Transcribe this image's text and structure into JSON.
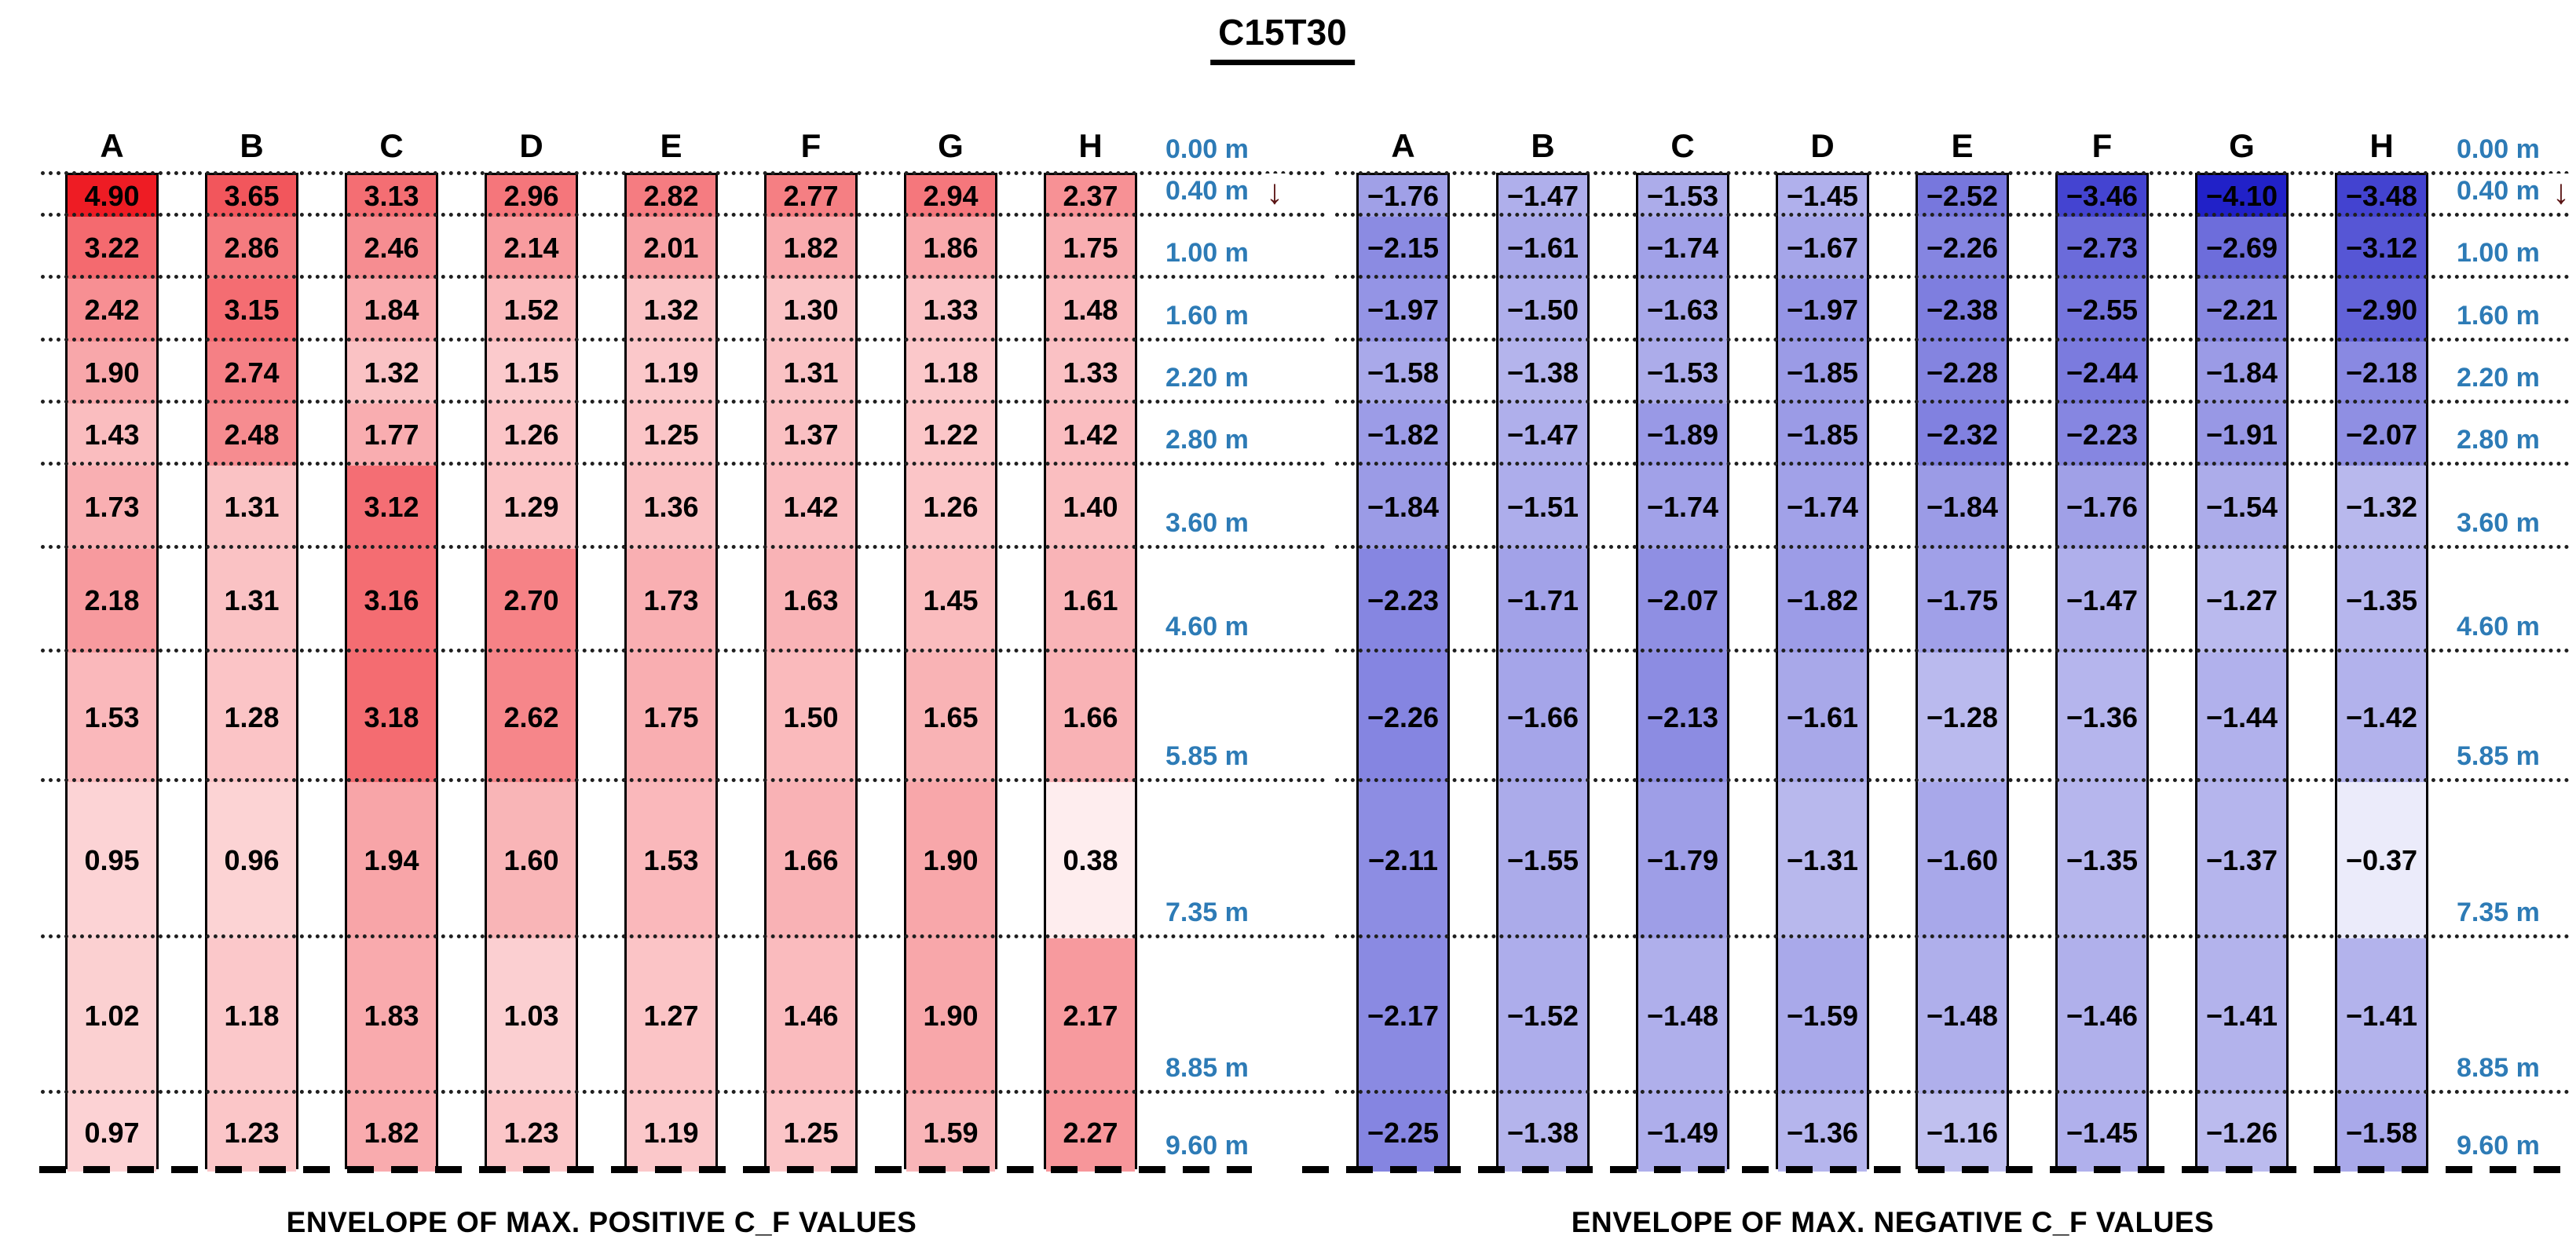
{
  "title": "C15T30",
  "annotations": {
    "flow_arrow_glyph": "↓"
  },
  "colors": {
    "background": "#ffffff",
    "text": "#000000",
    "depth_tick_label": "#2d7bb6",
    "flow_arrow": "#5a1414",
    "positive_max": "#ee1c24",
    "negative_max": "#2121c8",
    "grid_line": "#1f1f1f",
    "base_line": "#000000"
  },
  "chart_data": [
    {
      "type": "heatmap",
      "id": "positive-envelope",
      "caption": "ENVELOPE OF MAX. POSITIVE C_F VALUES",
      "palette": "white-to-red",
      "scale_max_abs": 4.9,
      "max_color": "#ee1c24",
      "unit": "m",
      "depth_ticks_m": [
        0.0,
        0.4,
        1.0,
        1.6,
        2.2,
        2.8,
        3.6,
        4.6,
        5.85,
        7.35,
        8.85,
        9.6
      ],
      "depth_tick_labels": [
        "0.00 m",
        "0.40 m",
        "1.00 m",
        "1.60 m",
        "2.20 m",
        "2.80 m",
        "3.60 m",
        "4.60 m",
        "5.85 m",
        "7.35 m",
        "8.85 m",
        "9.60 m"
      ],
      "categories": [
        "A",
        "B",
        "C",
        "D",
        "E",
        "F",
        "G",
        "H"
      ],
      "series": [
        {
          "name": "A",
          "values": [
            4.9,
            3.22,
            2.42,
            1.9,
            1.43,
            1.73,
            2.18,
            1.53,
            0.95,
            1.02,
            0.97
          ]
        },
        {
          "name": "B",
          "values": [
            3.65,
            2.86,
            3.15,
            2.74,
            2.48,
            1.31,
            1.31,
            1.28,
            0.96,
            1.18,
            1.23
          ]
        },
        {
          "name": "C",
          "values": [
            3.13,
            2.46,
            1.84,
            1.32,
            1.77,
            3.12,
            3.16,
            3.18,
            1.94,
            1.83,
            1.82
          ]
        },
        {
          "name": "D",
          "values": [
            2.96,
            2.14,
            1.52,
            1.15,
            1.26,
            1.29,
            2.7,
            2.62,
            1.6,
            1.03,
            1.23
          ]
        },
        {
          "name": "E",
          "values": [
            2.82,
            2.01,
            1.32,
            1.19,
            1.25,
            1.36,
            1.73,
            1.75,
            1.53,
            1.27,
            1.19
          ]
        },
        {
          "name": "F",
          "values": [
            2.77,
            1.82,
            1.3,
            1.31,
            1.37,
            1.42,
            1.63,
            1.5,
            1.66,
            1.46,
            1.25
          ]
        },
        {
          "name": "G",
          "values": [
            2.94,
            1.86,
            1.33,
            1.18,
            1.22,
            1.26,
            1.45,
            1.65,
            1.9,
            1.9,
            1.59
          ]
        },
        {
          "name": "H",
          "values": [
            2.37,
            1.75,
            1.48,
            1.33,
            1.42,
            1.4,
            1.61,
            1.66,
            0.38,
            2.17,
            2.27
          ]
        }
      ]
    },
    {
      "type": "heatmap",
      "id": "negative-envelope",
      "caption": "ENVELOPE OF MAX. NEGATIVE C_F VALUES",
      "palette": "white-to-blue",
      "scale_max_abs": 4.1,
      "max_color": "#2121c8",
      "unit": "m",
      "depth_ticks_m": [
        0.0,
        0.4,
        1.0,
        1.6,
        2.2,
        2.8,
        3.6,
        4.6,
        5.85,
        7.35,
        8.85,
        9.6
      ],
      "depth_tick_labels": [
        "0.00 m",
        "0.40 m",
        "1.00 m",
        "1.60 m",
        "2.20 m",
        "2.80 m",
        "3.60 m",
        "4.60 m",
        "5.85 m",
        "7.35 m",
        "8.85 m",
        "9.60 m"
      ],
      "categories": [
        "A",
        "B",
        "C",
        "D",
        "E",
        "F",
        "G",
        "H"
      ],
      "series": [
        {
          "name": "A",
          "values": [
            -1.76,
            -2.15,
            -1.97,
            -1.58,
            -1.82,
            -1.84,
            -2.23,
            -2.26,
            -2.11,
            -2.17,
            -2.25
          ]
        },
        {
          "name": "B",
          "values": [
            -1.47,
            -1.61,
            -1.5,
            -1.38,
            -1.47,
            -1.51,
            -1.71,
            -1.66,
            -1.55,
            -1.52,
            -1.38
          ]
        },
        {
          "name": "C",
          "values": [
            -1.53,
            -1.74,
            -1.63,
            -1.53,
            -1.89,
            -1.74,
            -2.07,
            -2.13,
            -1.79,
            -1.48,
            -1.49
          ]
        },
        {
          "name": "D",
          "values": [
            -1.45,
            -1.67,
            -1.97,
            -1.85,
            -1.85,
            -1.74,
            -1.82,
            -1.61,
            -1.31,
            -1.59,
            -1.36
          ]
        },
        {
          "name": "E",
          "values": [
            -2.52,
            -2.26,
            -2.38,
            -2.28,
            -2.32,
            -1.84,
            -1.75,
            -1.28,
            -1.6,
            -1.48,
            -1.16
          ]
        },
        {
          "name": "F",
          "values": [
            -3.46,
            -2.73,
            -2.55,
            -2.44,
            -2.23,
            -1.76,
            -1.47,
            -1.36,
            -1.35,
            -1.46,
            -1.45
          ]
        },
        {
          "name": "G",
          "values": [
            -4.1,
            -2.69,
            -2.21,
            -1.84,
            -1.91,
            -1.54,
            -1.27,
            -1.44,
            -1.37,
            -1.41,
            -1.26
          ]
        },
        {
          "name": "H",
          "values": [
            -3.48,
            -3.12,
            -2.9,
            -2.18,
            -2.07,
            -1.32,
            -1.35,
            -1.42,
            -0.37,
            -1.41,
            -1.58
          ]
        }
      ]
    }
  ]
}
